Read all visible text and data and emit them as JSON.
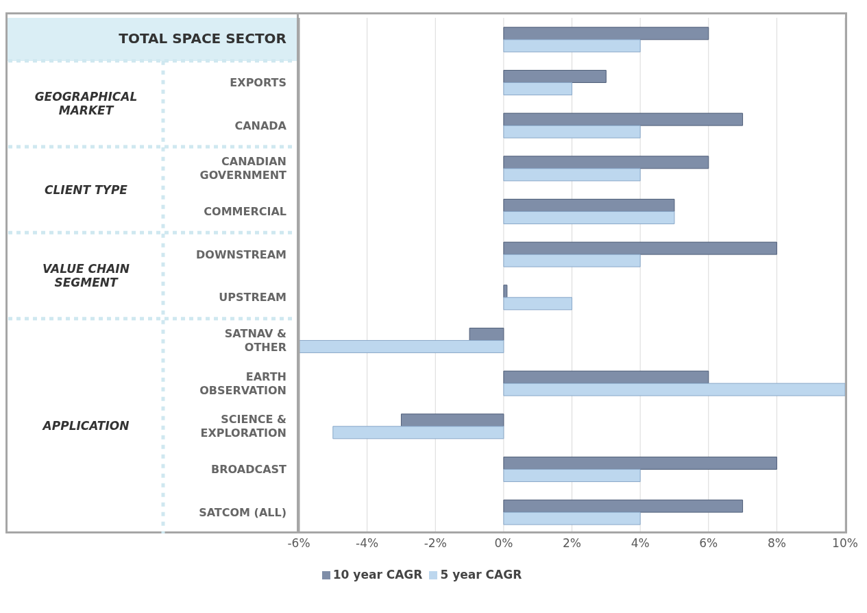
{
  "chart_data": {
    "type": "bar",
    "orientation": "horizontal",
    "categories": [
      "TOTAL SPACE SECTOR",
      "EXPORTS",
      "CANADA",
      "CANADIAN GOVERNMENT",
      "COMMERCIAL",
      "DOWNSTREAM",
      "UPSTREAM",
      "SATNAV & OTHER",
      "EARTH OBSERVATION",
      "SCIENCE & EXPLORATION",
      "BROADCAST",
      "SATCOM (ALL)"
    ],
    "series": [
      {
        "name": "10 year CAGR",
        "color": "#7f8ea8",
        "values": [
          6,
          3,
          7,
          6,
          5,
          8,
          0.1,
          -1,
          6,
          -3,
          8,
          7
        ]
      },
      {
        "name": "5 year CAGR",
        "color": "#bdd7ee",
        "values": [
          4,
          2,
          4,
          4,
          5,
          4,
          2,
          -6,
          10,
          -5,
          4,
          4
        ]
      }
    ],
    "xlim": [
      -6,
      10
    ],
    "xticks": [
      {
        "value": -6,
        "label": "-6%"
      },
      {
        "value": -4,
        "label": "-4%"
      },
      {
        "value": -2,
        "label": "-2%"
      },
      {
        "value": 0,
        "label": "0%"
      },
      {
        "value": 2,
        "label": "2%"
      },
      {
        "value": 4,
        "label": "4%"
      },
      {
        "value": 6,
        "label": "6%"
      },
      {
        "value": 8,
        "label": "8%"
      },
      {
        "value": 10,
        "label": "10%"
      }
    ],
    "annotations": [
      "GEOGRAPHICAL MARKET",
      "CLIENT TYPE",
      "VALUE CHAIN SEGMENT",
      "APPLICATION"
    ],
    "grid": "x",
    "legend": "bottom"
  }
}
